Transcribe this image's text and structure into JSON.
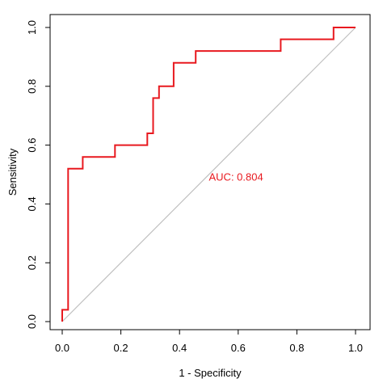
{
  "chart_data": {
    "type": "line",
    "title": "",
    "xlabel": "1 - Specificity",
    "ylabel": "Sensitivity",
    "xlim": [
      0,
      1
    ],
    "ylim": [
      0,
      1
    ],
    "x_ticks": [
      "0.0",
      "0.2",
      "0.4",
      "0.6",
      "0.8",
      "1.0"
    ],
    "y_ticks": [
      "0.0",
      "0.2",
      "0.4",
      "0.6",
      "0.8",
      "1.0"
    ],
    "grid": false,
    "legend": "none",
    "reference_line": {
      "x": [
        0,
        1
      ],
      "y": [
        0,
        1
      ],
      "color": "#c0c0c0"
    },
    "series": [
      {
        "color": "#e8191f",
        "x": [
          0.0,
          0.0,
          0.02,
          0.02,
          0.07,
          0.07,
          0.18,
          0.18,
          0.29,
          0.29,
          0.31,
          0.31,
          0.33,
          0.33,
          0.38,
          0.38,
          0.455,
          0.455,
          0.745,
          0.745,
          0.925,
          0.925,
          1.0
        ],
        "y": [
          0.0,
          0.04,
          0.04,
          0.52,
          0.52,
          0.56,
          0.56,
          0.6,
          0.6,
          0.64,
          0.64,
          0.76,
          0.76,
          0.8,
          0.8,
          0.88,
          0.88,
          0.92,
          0.92,
          0.96,
          0.96,
          1.0,
          1.0
        ]
      }
    ],
    "annotations": [
      {
        "text": "AUC: 0.804",
        "x": 0.5,
        "y": 0.48,
        "color": "#e8191f"
      }
    ]
  }
}
